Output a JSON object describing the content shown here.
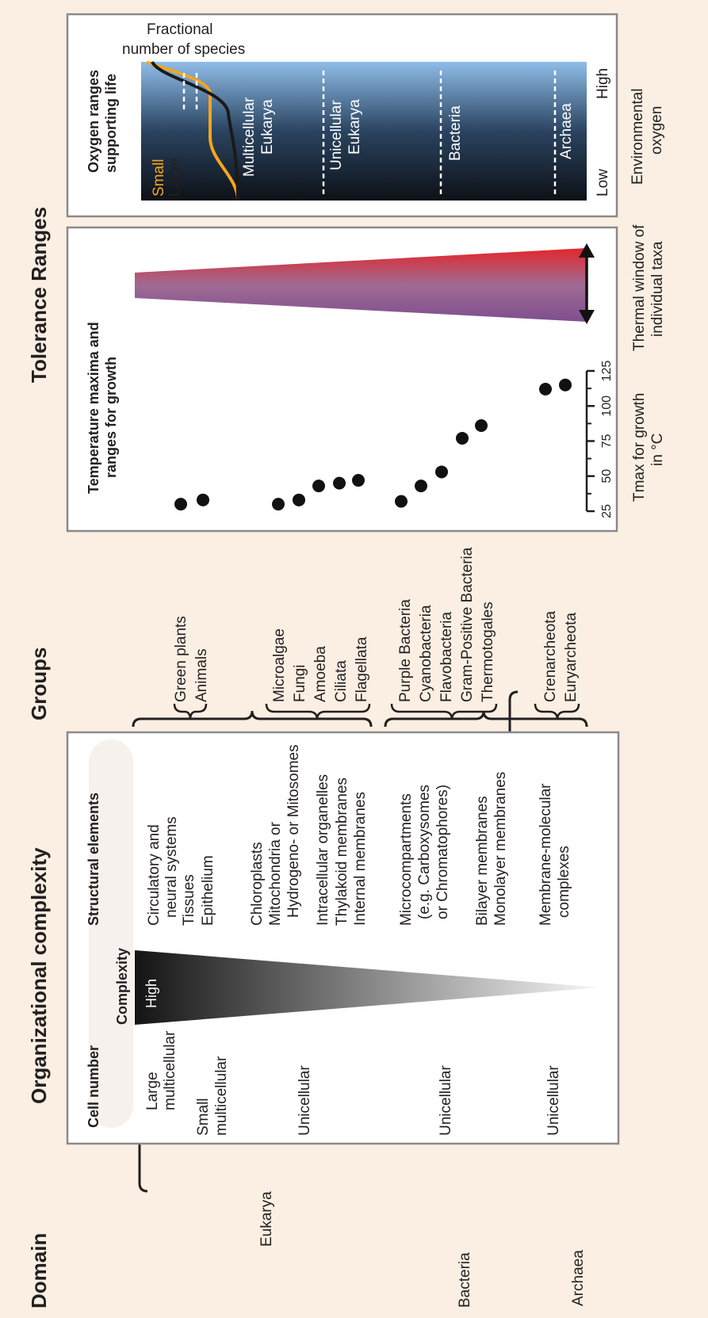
{
  "sections": {
    "domain": "Domain",
    "organizational_complexity": "Organizational complexity",
    "groups": "Groups",
    "tolerance_ranges": "Tolerance Ranges"
  },
  "domains": {
    "eukarya": "Eukarya",
    "bacteria": "Bacteria",
    "archaea": "Archaea"
  },
  "complexity_box": {
    "cell_number_header": "Cell number",
    "complexity_label": "Complexity",
    "high_label": "High",
    "structural_header": "Structural elements",
    "cell_numbers": {
      "large_1": "Large",
      "large_2": "multicellular",
      "small_1": "Small",
      "small_2": "multicellular",
      "euk_uni": "Unicellular",
      "bac_uni": "Unicellular",
      "arc_uni": "Unicellular"
    },
    "structures": {
      "s1": "Circulatory and",
      "s1b": "neural systems",
      "s2": "Tissues",
      "s3": "Epithelium",
      "s4": "Chloroplasts",
      "s5": "Mitochondria or",
      "s5b": "Hydrogeno- or Mitosomes",
      "s6": "Intracellular organelles",
      "s7": "Thylakoid membranes",
      "s8": "Internal membranes",
      "s9": "Microcompartments",
      "s9b": "(e.g. Carboxysomes",
      "s9c": "or Chromatophores)",
      "s10": "Bilayer membranes",
      "s11": "Monolayer membranes",
      "s12": "Membrane-molecular",
      "s12b": "complexes"
    }
  },
  "groups": {
    "g1": "Green plants",
    "g2": "Animals",
    "g3": "Microalgae",
    "g4": "Fungi",
    "g5": "Amoeba",
    "g6": "Ciliata",
    "g7": "Flagellata",
    "g8": "Purple Bacteria",
    "g9": "Cyanobacteria",
    "g10": "Flavobacteria",
    "g11": "Gram-Positive Bacteria",
    "g12": "Thermotogales",
    "g13": "Crenarcheota",
    "g14": "Euryarcheota"
  },
  "temperature_panel": {
    "title_1": "Temperature maxima and",
    "title_2": "ranges for growth",
    "axis_label_1": "Tmax for growth",
    "axis_label_2": "in °C",
    "ticks": [
      "25",
      "50",
      "75",
      "100",
      "125"
    ],
    "window_label_1": "Thermal window of",
    "window_label_2": "individual taxa",
    "gradient_colors": {
      "low": "#8ab6e6",
      "high": "#e3262b"
    }
  },
  "oxygen_panel": {
    "title_1": "Oxygen ranges",
    "title_2": "supporting life",
    "fractional_1": "Fractional",
    "fractional_2": "number of species",
    "small_label": "Small",
    "large_label": "Large",
    "low_label": "Low",
    "high_label": "High",
    "env_1": "Environmental",
    "env_2": "oxygen",
    "bands": {
      "multi_1": "Multicellular",
      "multi_2": "Eukarya",
      "uni_1": "Unicellular",
      "uni_2": "Eukarya",
      "bacteria": "Bacteria",
      "archaea": "Archaea"
    },
    "colors": {
      "small_curve": "#f7a51c",
      "large_curve": "#1a1a1a",
      "gradient_top": "#8fbde9",
      "gradient_bottom": "#0d1016"
    }
  },
  "chart_data": {
    "type": "scatter",
    "xlabel": "Tmax for growth in °C",
    "ylabel": "",
    "xlim": [
      25,
      125
    ],
    "ticks": [
      25,
      50,
      75,
      100,
      125
    ],
    "series": [
      {
        "group": "Green plants",
        "x": 30
      },
      {
        "group": "Animals",
        "x": 33
      },
      {
        "group": "Microalgae",
        "x": 30
      },
      {
        "group": "Fungi",
        "x": 33
      },
      {
        "group": "Amoeba",
        "x": 43
      },
      {
        "group": "Ciliata",
        "x": 45
      },
      {
        "group": "Flagellata",
        "x": 47
      },
      {
        "group": "Purple Bacteria",
        "x": 32
      },
      {
        "group": "Cyanobacteria",
        "x": 43
      },
      {
        "group": "Flavobacteria",
        "x": 53
      },
      {
        "group": "Gram-Positive Bacteria",
        "x": 77
      },
      {
        "group": "Thermotogales",
        "x": 86
      },
      {
        "group": "Crenarcheota",
        "x": 112
      },
      {
        "group": "Euryarcheota",
        "x": 115
      }
    ]
  }
}
